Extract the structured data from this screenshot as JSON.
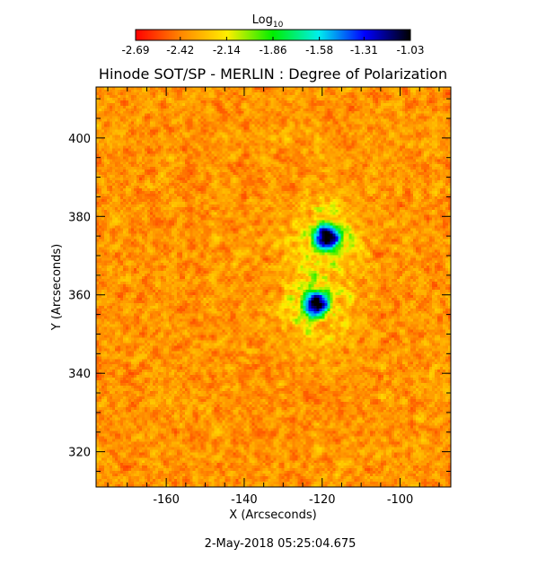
{
  "chart_data": {
    "type": "heatmap",
    "title": "Hinode SOT/SP - MERLIN : Degree of Polarization",
    "xlabel": "X (Arcseconds)",
    "ylabel": "Y (Arcseconds)",
    "xlim": [
      -178,
      -87
    ],
    "ylim": [
      311,
      413
    ],
    "xticks": [
      -160,
      -140,
      -120,
      -100
    ],
    "yticks": [
      320,
      340,
      360,
      380,
      400
    ],
    "colorbar": {
      "label_base": "Log",
      "label_sub": "10",
      "scale": "log10",
      "range": [
        -2.69,
        -1.03
      ],
      "ticks": [
        "-2.69",
        "-2.42",
        "-2.14",
        "-1.86",
        "-1.58",
        "-1.31",
        "-1.03"
      ],
      "colormap": [
        "#ff0000",
        "#ff8800",
        "#ffee00",
        "#00ee00",
        "#00eeee",
        "#0000ff",
        "#000000"
      ]
    },
    "features": [
      {
        "desc": "upper polarization core",
        "x": -119,
        "y": 375,
        "peak_log10": -1.3
      },
      {
        "desc": "lower polarization core",
        "x": -122,
        "y": 358,
        "peak_log10": -1.35
      }
    ],
    "timestamp": "2-May-2018 05:25:04.675"
  }
}
